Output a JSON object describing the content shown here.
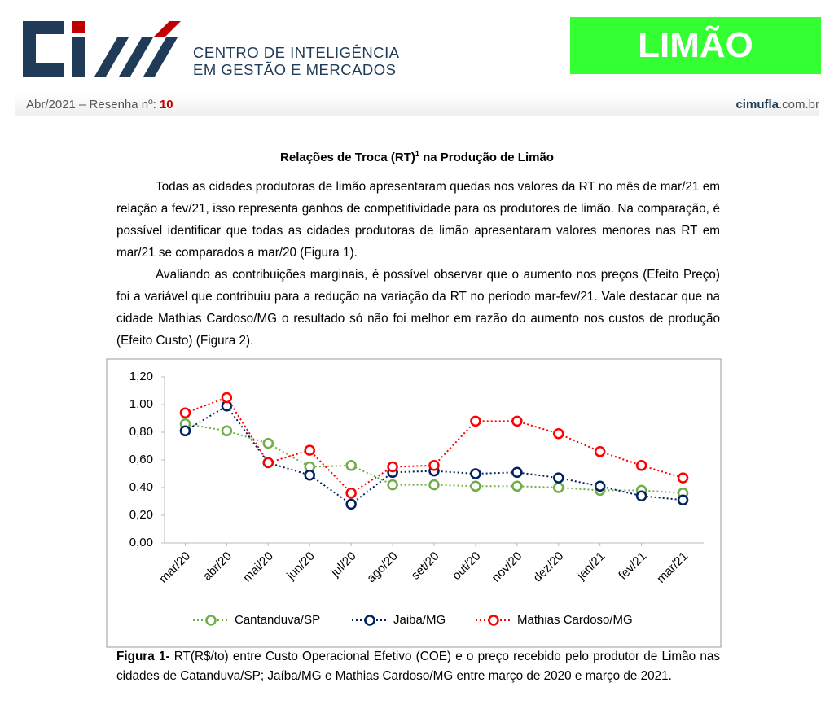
{
  "header": {
    "org_line1": "CENTRO DE INTELIGÊNCIA",
    "org_line2": "EM GESTÃO E MERCADOS",
    "product": "LIMÃO",
    "issue_label": "Abr/2021 – Resenha nº:",
    "issue_number": "10",
    "site_name": "cimufla",
    "site_domain": ".com.br"
  },
  "section": {
    "title": "Relações de Troca (RT)",
    "title_note": "1",
    "title_rest": "na Produção de Limão",
    "paragraphs": [
      "Todas as cidades produtoras de limão apresentaram quedas nos valores da RT no mês de mar/21 em relação a fev/21, isso representa ganhos de competitividade para os produtores de limão. Na comparação, é possível identificar que todas as cidades produtoras de limão apresentaram valores menores nas RT em mar/21 se comparados a mar/20 (Figura 1).",
      "Avaliando as contribuições marginais, é possível observar que o aumento nos preços (Efeito Preço) foi a variável que contribuiu para a redução na variação da RT no período mar-fev/21. Vale destacar que na cidade Mathias Cardoso/MG o resultado só não foi melhor em razão do aumento nos custos de produção (Efeito Custo) (Figura 2)."
    ]
  },
  "chart_data": {
    "type": "line",
    "categories": [
      "mar/20",
      "abr/20",
      "mai/20",
      "jun/20",
      "jul/20",
      "ago/20",
      "set/20",
      "out/20",
      "nov/20",
      "dez/20",
      "jan/21",
      "fev/21",
      "mar/21"
    ],
    "series": [
      {
        "name": "Cantanduva/SP",
        "color": "#70ad47",
        "values": [
          0.86,
          0.81,
          0.72,
          0.55,
          0.56,
          0.42,
          0.42,
          0.41,
          0.41,
          0.4,
          0.38,
          0.38,
          0.36
        ]
      },
      {
        "name": "Jaiba/MG",
        "color": "#002060",
        "values": [
          0.81,
          0.99,
          0.58,
          0.49,
          0.28,
          0.51,
          0.52,
          0.5,
          0.51,
          0.47,
          0.41,
          0.34,
          0.31
        ]
      },
      {
        "name": "Mathias Cardoso/MG",
        "color": "#ff0000",
        "values": [
          0.94,
          1.05,
          0.58,
          0.67,
          0.36,
          0.55,
          0.56,
          0.88,
          0.88,
          0.79,
          0.66,
          0.56,
          0.47
        ]
      }
    ],
    "ylim": [
      0,
      1.2
    ],
    "yticks": [
      {
        "value": 0,
        "label": "0,00"
      },
      {
        "value": 0.2,
        "label": "0,20"
      },
      {
        "value": 0.4,
        "label": "0,40"
      },
      {
        "value": 0.6,
        "label": "0,60"
      },
      {
        "value": 0.8,
        "label": "0,80"
      },
      {
        "value": 1,
        "label": "1,00"
      },
      {
        "value": 1.2,
        "label": "1,20"
      }
    ],
    "grid": false,
    "legend": "bottom"
  },
  "caption": {
    "label": "Figura 1-",
    "text": "RT(R$/to) entre Custo Operacional Efetivo (COE) e o preço recebido pelo produtor de Limão nas cidades de Catanduva/SP; Jaíba/MG e Mathias Cardoso/MG entre março de 2020 e março de 2021."
  }
}
